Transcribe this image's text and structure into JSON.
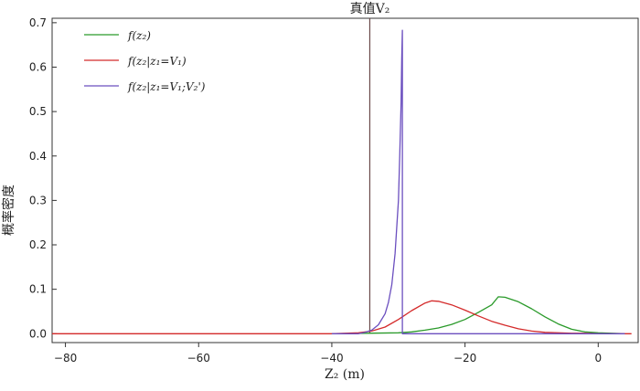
{
  "chart_data": {
    "type": "line",
    "title": "",
    "annotation": "真值V₂",
    "xlabel": "Z₂ (m)",
    "ylabel": "概率密度",
    "xlim": [
      -82,
      6
    ],
    "ylim": [
      -0.02,
      0.71
    ],
    "xticks": [
      {
        "value": -80,
        "label": "−80"
      },
      {
        "value": -60,
        "label": "−60"
      },
      {
        "value": -40,
        "label": "−40"
      },
      {
        "value": -20,
        "label": "−20"
      },
      {
        "value": 0,
        "label": "0"
      }
    ],
    "yticks": [
      {
        "value": 0.0,
        "label": "0.0"
      },
      {
        "value": 0.1,
        "label": "0.1"
      },
      {
        "value": 0.2,
        "label": "0.2"
      },
      {
        "value": 0.3,
        "label": "0.3"
      },
      {
        "value": 0.4,
        "label": "0.4"
      },
      {
        "value": 0.5,
        "label": "0.5"
      },
      {
        "value": 0.6,
        "label": "0.6"
      },
      {
        "value": 0.7,
        "label": "0.7"
      }
    ],
    "grid": false,
    "legend_position": "top-left",
    "true_value_x": -34.3,
    "series": [
      {
        "name": "f(z₂)",
        "color": "#2a9a2a",
        "x": [
          -40,
          -30,
          -28,
          -26,
          -24,
          -22,
          -20,
          -18,
          -16,
          -15,
          -14,
          -12,
          -10,
          -8,
          -6,
          -4,
          -2,
          0,
          4
        ],
        "y": [
          0,
          0.002,
          0.004,
          0.008,
          0.013,
          0.021,
          0.032,
          0.048,
          0.065,
          0.083,
          0.082,
          0.072,
          0.056,
          0.038,
          0.022,
          0.01,
          0.004,
          0.002,
          0.0
        ]
      },
      {
        "name": "f(z₂|z₁=V₁)",
        "color": "#d42a2a",
        "x": [
          -82,
          -40,
          -36,
          -34,
          -32,
          -30,
          -28,
          -26,
          -25,
          -24,
          -22,
          -20,
          -18,
          -16,
          -14,
          -12,
          -10,
          -8,
          -6,
          -4,
          -2,
          0,
          5
        ],
        "y": [
          0,
          0,
          0.002,
          0.006,
          0.015,
          0.032,
          0.052,
          0.069,
          0.074,
          0.073,
          0.065,
          0.053,
          0.04,
          0.028,
          0.019,
          0.011,
          0.006,
          0.003,
          0.002,
          0.001,
          0.001,
          0.0,
          0.0
        ]
      },
      {
        "name": "f(z₂|z₁=V₁;V₂')",
        "color": "#6b4fbf",
        "x": [
          -40,
          -36,
          -35,
          -34,
          -33,
          -32,
          -31.5,
          -31,
          -30.5,
          -30,
          -29.8,
          -29.6,
          -29.5,
          -29.4,
          -29.4,
          -20,
          0,
          4
        ],
        "y": [
          0,
          0.0,
          0.003,
          0.008,
          0.02,
          0.045,
          0.07,
          0.11,
          0.18,
          0.3,
          0.4,
          0.52,
          0.62,
          0.683,
          0.0,
          0.0,
          0.0,
          0.0
        ]
      }
    ]
  }
}
